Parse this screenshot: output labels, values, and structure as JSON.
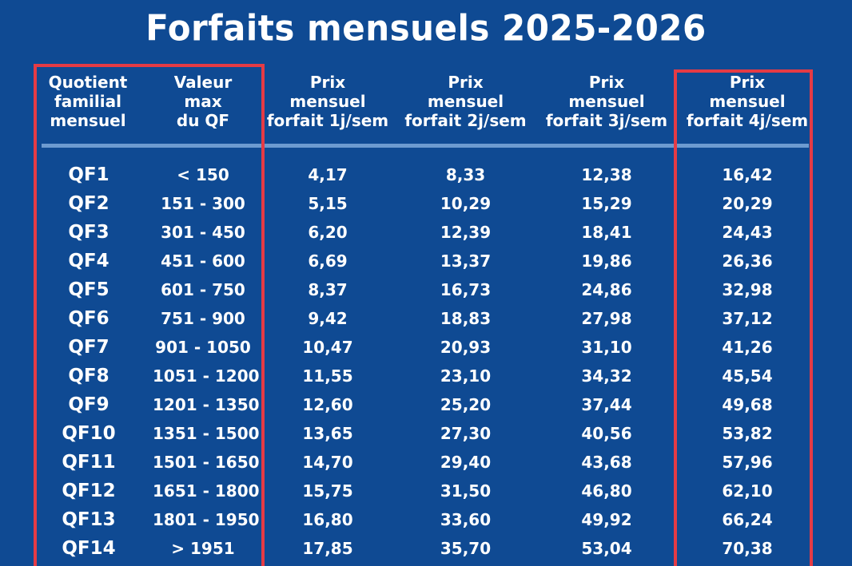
{
  "title": "Forfaits mensuels 2025-2026",
  "headers": [
    "Quotient\nfamilial\nmensuel",
    "Valeur\nmax\ndu QF",
    "Prix\nmensuel\nforfait 1j/sem",
    "Prix\nmensuel\nforfait 2j/sem",
    "Prix\nmensuel\nforfait 3j/sem",
    "Prix\nmensuel\nforfait 4j/sem"
  ],
  "rows": [
    {
      "qf": "QF1",
      "range": "< 150",
      "p1": "4,17",
      "p2": "8,33",
      "p3": "12,38",
      "p4": "16,42"
    },
    {
      "qf": "QF2",
      "range": "151 - 300",
      "p1": "5,15",
      "p2": "10,29",
      "p3": "15,29",
      "p4": "20,29"
    },
    {
      "qf": "QF3",
      "range": "301 - 450",
      "p1": "6,20",
      "p2": "12,39",
      "p3": "18,41",
      "p4": "24,43"
    },
    {
      "qf": "QF4",
      "range": "451 - 600",
      "p1": "6,69",
      "p2": "13,37",
      "p3": "19,86",
      "p4": "26,36"
    },
    {
      "qf": "QF5",
      "range": "601 - 750",
      "p1": "8,37",
      "p2": "16,73",
      "p3": "24,86",
      "p4": "32,98"
    },
    {
      "qf": "QF6",
      "range": "751 - 900",
      "p1": "9,42",
      "p2": "18,83",
      "p3": "27,98",
      "p4": "37,12"
    },
    {
      "qf": "QF7",
      "range": "901 - 1050",
      "p1": "10,47",
      "p2": "20,93",
      "p3": "31,10",
      "p4": "41,26"
    },
    {
      "qf": "QF8",
      "range": "1051 - 1200",
      "p1": "11,55",
      "p2": "23,10",
      "p3": "34,32",
      "p4": "45,54"
    },
    {
      "qf": "QF9",
      "range": "1201 - 1350",
      "p1": "12,60",
      "p2": "25,20",
      "p3": "37,44",
      "p4": "49,68"
    },
    {
      "qf": "QF10",
      "range": "1351 - 1500",
      "p1": "13,65",
      "p2": "27,30",
      "p3": "40,56",
      "p4": "53,82"
    },
    {
      "qf": "QF11",
      "range": "1501 - 1650",
      "p1": "14,70",
      "p2": "29,40",
      "p3": "43,68",
      "p4": "57,96"
    },
    {
      "qf": "QF12",
      "range": "1651 - 1800",
      "p1": "15,75",
      "p2": "31,50",
      "p3": "46,80",
      "p4": "62,10"
    },
    {
      "qf": "QF13",
      "range": "1801 - 1950",
      "p1": "16,80",
      "p2": "33,60",
      "p3": "49,92",
      "p4": "66,24"
    },
    {
      "qf": "QF14",
      "range": "> 1951",
      "p1": "17,85",
      "p2": "35,70",
      "p3": "53,04",
      "p4": "70,38"
    }
  ],
  "colors": {
    "background": "#0f4a93",
    "text": "#ffffff",
    "divider": "#6d9bd0",
    "highlight": "#e53b45"
  }
}
